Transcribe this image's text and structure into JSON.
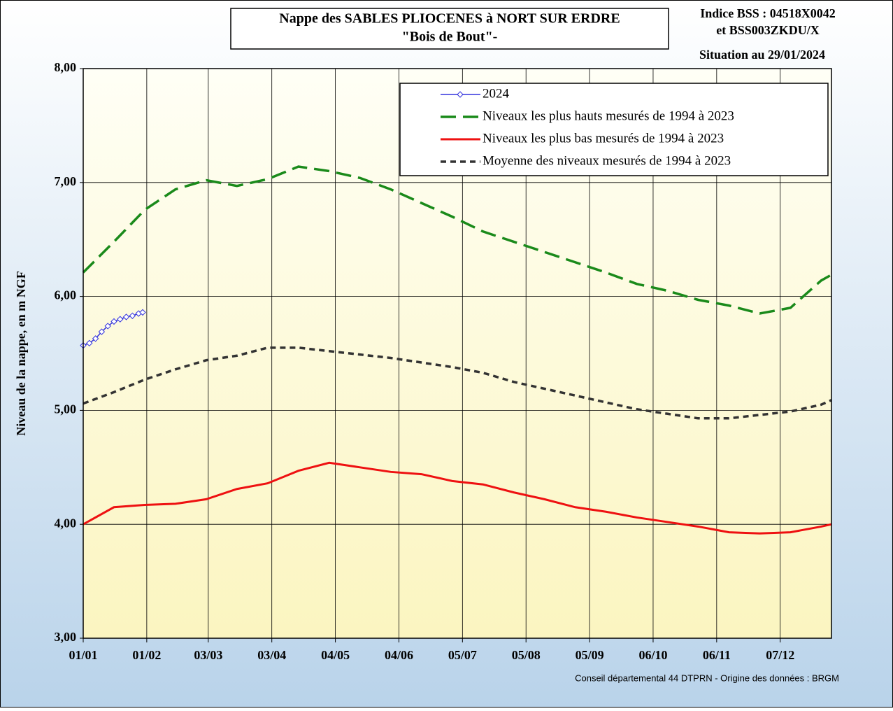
{
  "chart_data": {
    "type": "line",
    "title": [
      "Nappe des SABLES PLIOCENES à NORT SUR ERDRE",
      "\"Bois de Bout\"-"
    ],
    "annotations": [
      "Indice BSS : 04518X0042",
      "et BSS003ZKDU/X",
      "Situation au 29/01/2024",
      "Conseil départemental  44 DTPRN  -   Origine des données : BRGM"
    ],
    "y_label": "Niveau de la nappe, en m NGF",
    "x": [
      0,
      15,
      30,
      45,
      60,
      75,
      90,
      105,
      120,
      135,
      150,
      165,
      180,
      195,
      210,
      225,
      240,
      255,
      270,
      285,
      300,
      315,
      330,
      345,
      360,
      365
    ],
    "xlim": [
      0,
      365
    ],
    "xticks": [
      {
        "value": 0,
        "label": "01/01"
      },
      {
        "value": 31,
        "label": "01/02"
      },
      {
        "value": 61,
        "label": "03/03"
      },
      {
        "value": 92,
        "label": "03/04"
      },
      {
        "value": 123,
        "label": "04/05"
      },
      {
        "value": 154,
        "label": "04/06"
      },
      {
        "value": 185,
        "label": "05/07"
      },
      {
        "value": 216,
        "label": "05/08"
      },
      {
        "value": 247,
        "label": "05/09"
      },
      {
        "value": 278,
        "label": "06/10"
      },
      {
        "value": 309,
        "label": "06/11"
      },
      {
        "value": 340,
        "label": "07/12"
      }
    ],
    "ylim": [
      3,
      8
    ],
    "yticks": [
      {
        "value": 3,
        "label": "3,00"
      },
      {
        "value": 4,
        "label": "4,00"
      },
      {
        "value": 5,
        "label": "5,00"
      },
      {
        "value": 6,
        "label": "6,00"
      },
      {
        "value": 7,
        "label": "7,00"
      },
      {
        "value": 8,
        "label": "8,00"
      }
    ],
    "grid": true,
    "legend": "upper right",
    "series": [
      {
        "name": "2024",
        "color": "#3333dd",
        "linestyle": "solid",
        "marker": "diamond",
        "x": [
          0,
          3,
          6,
          9,
          12,
          15,
          18,
          21,
          24,
          27,
          29
        ],
        "values": [
          5.57,
          5.59,
          5.63,
          5.69,
          5.74,
          5.78,
          5.8,
          5.82,
          5.83,
          5.85,
          5.86
        ]
      },
      {
        "name": "Niveaux les plus hauts mesurés de 1994 à 2023",
        "color": "#1a8a1a",
        "linestyle": "longdash",
        "values": [
          6.21,
          6.48,
          6.76,
          6.94,
          7.02,
          6.97,
          7.03,
          7.14,
          7.1,
          7.04,
          6.94,
          6.82,
          6.7,
          6.57,
          6.48,
          6.39,
          6.3,
          6.21,
          6.11,
          6.05,
          5.97,
          5.92,
          5.85,
          5.9,
          6.14,
          6.19
        ]
      },
      {
        "name": "Niveaux les plus bas mesurés de 1994 à 2023",
        "color": "#ee1111",
        "linestyle": "solid",
        "values": [
          4.0,
          4.15,
          4.17,
          4.18,
          4.22,
          4.31,
          4.36,
          4.47,
          4.54,
          4.5,
          4.46,
          4.44,
          4.38,
          4.35,
          4.28,
          4.22,
          4.15,
          4.11,
          4.06,
          4.02,
          3.98,
          3.93,
          3.92,
          3.93,
          3.98,
          4.0
        ]
      },
      {
        "name": "Moyenne des niveaux mesurés de 1994 à 2023",
        "color": "#333333",
        "linestyle": "shortdash",
        "values": [
          5.06,
          5.16,
          5.27,
          5.36,
          5.44,
          5.48,
          5.55,
          5.55,
          5.52,
          5.49,
          5.46,
          5.42,
          5.38,
          5.33,
          5.25,
          5.19,
          5.13,
          5.07,
          5.01,
          4.97,
          4.93,
          4.93,
          4.96,
          4.99,
          5.05,
          5.09
        ]
      }
    ]
  }
}
